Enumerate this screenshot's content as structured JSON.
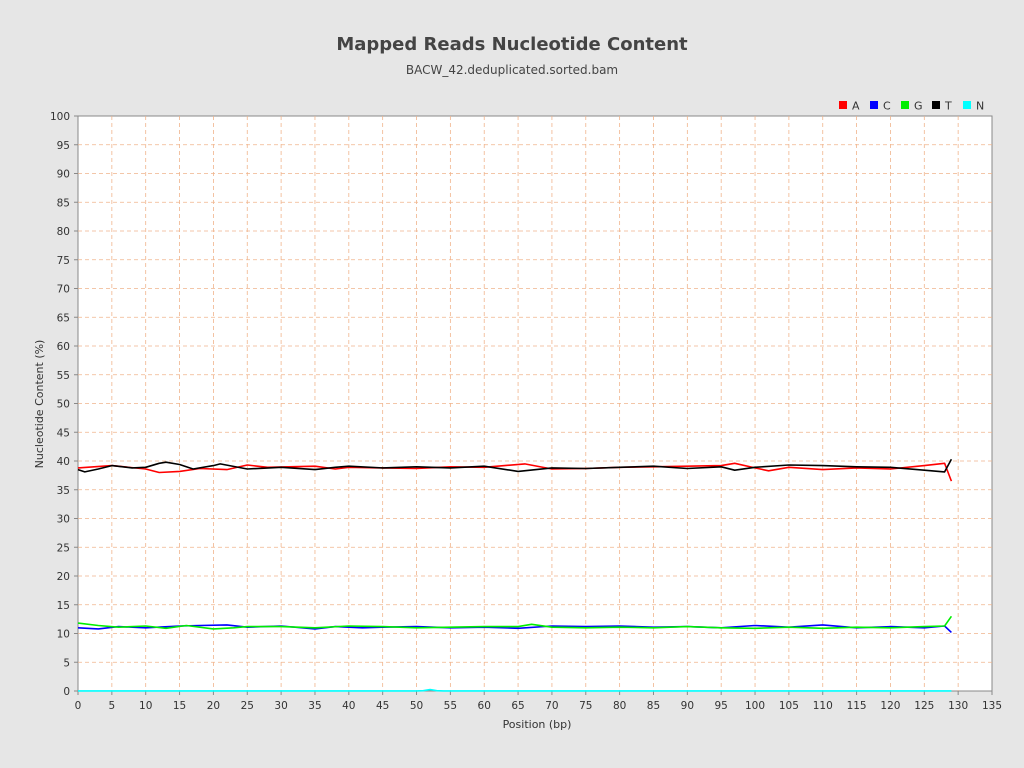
{
  "chart_data": {
    "type": "line",
    "title": "Mapped Reads Nucleotide Content",
    "subtitle": "BACW_42.deduplicated.sorted.bam",
    "xlabel": "Position (bp)",
    "ylabel": "Nucleotide Content (%)",
    "xlim": [
      0,
      135
    ],
    "ylim": [
      0,
      100
    ],
    "x_ticks": [
      0,
      5,
      10,
      15,
      20,
      25,
      30,
      35,
      40,
      45,
      50,
      55,
      60,
      65,
      70,
      75,
      80,
      85,
      90,
      95,
      100,
      105,
      110,
      115,
      120,
      125,
      130,
      135
    ],
    "y_ticks": [
      0,
      5,
      10,
      15,
      20,
      25,
      30,
      35,
      40,
      45,
      50,
      55,
      60,
      65,
      70,
      75,
      80,
      85,
      90,
      95,
      100
    ],
    "grid": true,
    "legend_position": "top-right",
    "series": [
      {
        "name": "A",
        "color": "#ff0000",
        "x": [
          0,
          5,
          10,
          12,
          15,
          18,
          22,
          25,
          28,
          35,
          38,
          40,
          45,
          50,
          55,
          60,
          66,
          70,
          75,
          80,
          85,
          90,
          95,
          97,
          100,
          102,
          105,
          110,
          115,
          120,
          125,
          128,
          129
        ],
        "y": [
          38.8,
          39.2,
          38.6,
          38.0,
          38.2,
          38.7,
          38.5,
          39.3,
          38.9,
          39.1,
          38.6,
          38.9,
          38.8,
          38.7,
          39.0,
          38.9,
          39.5,
          38.6,
          38.7,
          38.9,
          39.0,
          39.1,
          39.2,
          39.6,
          38.8,
          38.3,
          38.9,
          38.5,
          38.8,
          38.6,
          39.2,
          39.6,
          36.5
        ]
      },
      {
        "name": "C",
        "color": "#0000ff",
        "x": [
          0,
          3,
          6,
          10,
          15,
          18,
          22,
          25,
          30,
          35,
          38,
          42,
          45,
          50,
          55,
          60,
          65,
          70,
          75,
          80,
          85,
          90,
          95,
          100,
          105,
          110,
          115,
          120,
          125,
          128,
          129
        ],
        "y": [
          11.0,
          10.8,
          11.2,
          11.0,
          11.3,
          11.4,
          11.5,
          11.1,
          11.3,
          10.8,
          11.2,
          11.0,
          11.1,
          11.2,
          11.0,
          11.1,
          10.9,
          11.3,
          11.2,
          11.3,
          11.1,
          11.2,
          11.0,
          11.4,
          11.1,
          11.5,
          11.0,
          11.2,
          11.0,
          11.3,
          10.2
        ]
      },
      {
        "name": "G",
        "color": "#00ee00",
        "x": [
          0,
          3,
          6,
          10,
          13,
          16,
          20,
          23,
          25,
          30,
          35,
          40,
          45,
          50,
          55,
          60,
          65,
          67,
          70,
          75,
          80,
          85,
          90,
          95,
          100,
          105,
          110,
          115,
          120,
          125,
          128,
          129
        ],
        "y": [
          11.8,
          11.4,
          11.1,
          11.3,
          10.9,
          11.4,
          10.8,
          11.0,
          11.2,
          11.2,
          11.0,
          11.3,
          11.2,
          11.0,
          11.1,
          11.2,
          11.2,
          11.6,
          11.1,
          11.0,
          11.1,
          11.0,
          11.2,
          11.0,
          10.9,
          11.1,
          10.9,
          11.1,
          11.0,
          11.2,
          11.3,
          13.0
        ]
      },
      {
        "name": "T",
        "color": "#000000",
        "x": [
          0,
          1,
          3,
          5,
          8,
          10,
          12,
          13,
          15,
          17,
          20,
          21,
          25,
          30,
          35,
          38,
          40,
          45,
          50,
          55,
          60,
          65,
          70,
          75,
          80,
          85,
          90,
          95,
          97,
          100,
          105,
          110,
          115,
          120,
          125,
          128,
          129
        ],
        "y": [
          38.5,
          38.1,
          38.6,
          39.2,
          38.8,
          38.9,
          39.6,
          39.8,
          39.4,
          38.6,
          39.2,
          39.5,
          38.6,
          38.9,
          38.5,
          38.9,
          39.1,
          38.8,
          39.0,
          38.8,
          39.1,
          38.2,
          38.8,
          38.7,
          38.9,
          39.1,
          38.7,
          39.0,
          38.4,
          38.9,
          39.3,
          39.2,
          39.0,
          38.9,
          38.4,
          38.1,
          40.3
        ]
      },
      {
        "name": "N",
        "color": "#00ffff",
        "x": [
          0,
          50,
          51,
          52,
          53,
          54,
          129
        ],
        "y": [
          0.02,
          0.02,
          0.05,
          0.25,
          0.05,
          0.02,
          0.02
        ]
      }
    ]
  }
}
